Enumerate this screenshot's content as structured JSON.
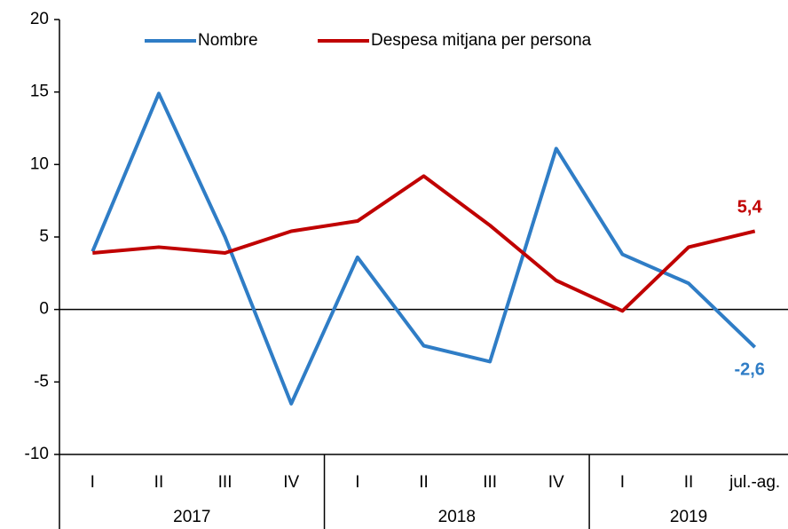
{
  "chart_data": {
    "type": "line",
    "groups": [
      {
        "label": "2017",
        "categories": [
          "I",
          "II",
          "III",
          "IV"
        ]
      },
      {
        "label": "2018",
        "categories": [
          "I",
          "II",
          "III",
          "IV"
        ]
      },
      {
        "label": "2019",
        "categories": [
          "I",
          "II",
          "jul.-ag."
        ]
      }
    ],
    "series": [
      {
        "name": "Nombre",
        "color": "#2f7dc6",
        "values": [
          4.0,
          14.9,
          5.0,
          -6.5,
          3.6,
          -2.5,
          -3.6,
          11.1,
          3.8,
          1.8,
          -2.6
        ],
        "value_labels": [
          null,
          null,
          null,
          null,
          null,
          null,
          null,
          null,
          null,
          null,
          "-2,6"
        ]
      },
      {
        "name": "Despesa mitjana per persona",
        "color": "#c00000",
        "values": [
          3.9,
          4.3,
          3.9,
          5.4,
          6.1,
          9.2,
          5.8,
          2.0,
          -0.1,
          4.3,
          5.4
        ],
        "value_labels": [
          null,
          null,
          null,
          null,
          null,
          null,
          null,
          null,
          null,
          null,
          "5,4"
        ]
      }
    ],
    "ylim": [
      -10,
      20
    ],
    "yticks": [
      -10,
      -5,
      0,
      5,
      10,
      15,
      20
    ]
  }
}
